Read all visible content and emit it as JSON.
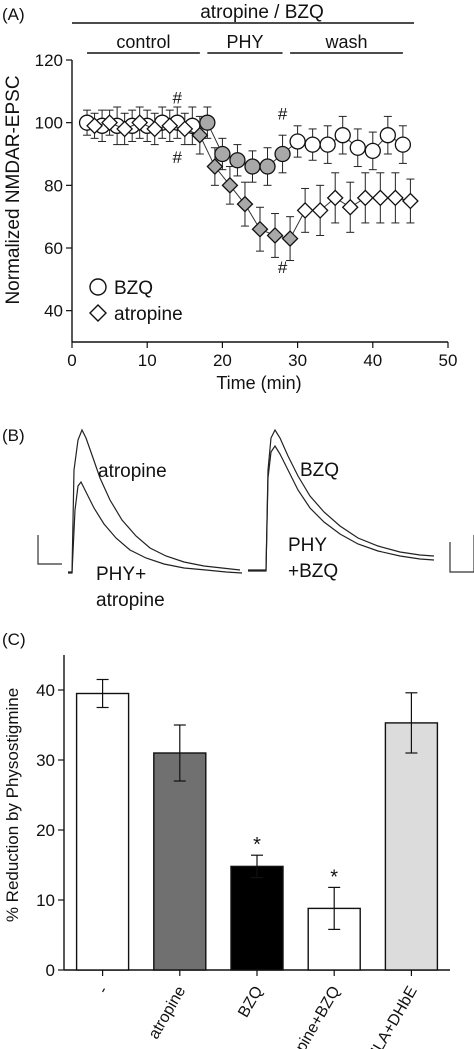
{
  "panelA": {
    "label": "(A)",
    "top_bar_label": "atropine / BZQ",
    "segments": [
      {
        "label": "control",
        "from": 2,
        "to": 17
      },
      {
        "label": "PHY",
        "from": 18,
        "to": 28
      },
      {
        "label": "wash",
        "from": 29,
        "to": 44
      }
    ]
  },
  "panelB": {
    "label": "(B)",
    "left_labels": [
      "atropine",
      "PHY+",
      "atropine"
    ],
    "right_labels": [
      "BZQ",
      "PHY",
      "+BZQ"
    ]
  },
  "panelC": {
    "label": "(C)"
  },
  "chart_data": [
    {
      "type": "scatter",
      "xlabel": "Time (min)",
      "ylabel": "Normalized NMDAR-EPSC",
      "xlim": [
        0,
        50
      ],
      "ylim": [
        30,
        120
      ],
      "xticks": [
        0,
        10,
        20,
        30,
        40,
        50
      ],
      "yticks": [
        40,
        60,
        80,
        100,
        120
      ],
      "legend_position": "bottom-left",
      "series": [
        {
          "name": "BZQ",
          "marker": "circle",
          "x": [
            2,
            4,
            6,
            8,
            10,
            12,
            14,
            16,
            18,
            20,
            22,
            24,
            26,
            28,
            30,
            32,
            34,
            36,
            38,
            40,
            42,
            44
          ],
          "y": [
            100,
            99,
            99,
            99,
            99,
            100,
            100,
            99,
            100,
            90,
            88,
            86,
            86,
            90,
            94,
            93,
            93,
            96,
            92,
            91,
            96,
            93
          ],
          "err": [
            4,
            5,
            6,
            5,
            5,
            5,
            5,
            6,
            5,
            5,
            5,
            5,
            6,
            6,
            5,
            5,
            6,
            6,
            6,
            6,
            6,
            6
          ],
          "filled": [
            false,
            false,
            false,
            false,
            false,
            false,
            false,
            false,
            true,
            true,
            true,
            true,
            true,
            true,
            false,
            false,
            false,
            false,
            false,
            false,
            false,
            false
          ]
        },
        {
          "name": "atropine",
          "marker": "diamond",
          "x": [
            3,
            5,
            7,
            9,
            11,
            13,
            15,
            17,
            19,
            21,
            23,
            25,
            27,
            29,
            31,
            33,
            35,
            37,
            39,
            41,
            43,
            45
          ],
          "y": [
            99,
            100,
            98,
            100,
            98,
            99,
            98,
            96,
            86,
            80,
            74,
            66,
            64,
            63,
            72,
            72,
            76,
            73,
            76,
            76,
            76,
            75
          ],
          "err": [
            4,
            4,
            5,
            5,
            5,
            5,
            5,
            6,
            6,
            6,
            7,
            7,
            7,
            7,
            7,
            8,
            8,
            8,
            8,
            8,
            8,
            7
          ],
          "filled": [
            false,
            false,
            false,
            false,
            false,
            false,
            false,
            true,
            true,
            true,
            true,
            true,
            true,
            true,
            false,
            false,
            false,
            false,
            false,
            false,
            false,
            false
          ]
        }
      ],
      "annotations": [
        {
          "text": "#",
          "x": 14,
          "y": 108
        },
        {
          "text": "#",
          "x": 14,
          "y": 89
        },
        {
          "text": "#",
          "x": 28,
          "y": 103
        },
        {
          "text": "#",
          "x": 28,
          "y": 54
        }
      ]
    },
    {
      "type": "bar",
      "ylabel": "% Reduction by Physostigmine",
      "ylim": [
        0,
        45
      ],
      "yticks": [
        0,
        10,
        20,
        30,
        40
      ],
      "categories": [
        "-",
        "atropine",
        "BZQ",
        "atropine+BZQ",
        "MLA+DHbE"
      ],
      "values": [
        39.5,
        31,
        14.8,
        8.8,
        35.3
      ],
      "errors": [
        2,
        4,
        1.6,
        3,
        4.3
      ],
      "colors": [
        "#ffffff",
        "#707070",
        "#000000",
        "#ffffff",
        "#dcdcdc"
      ],
      "annotations": [
        "",
        "",
        "*",
        "*",
        ""
      ]
    }
  ]
}
